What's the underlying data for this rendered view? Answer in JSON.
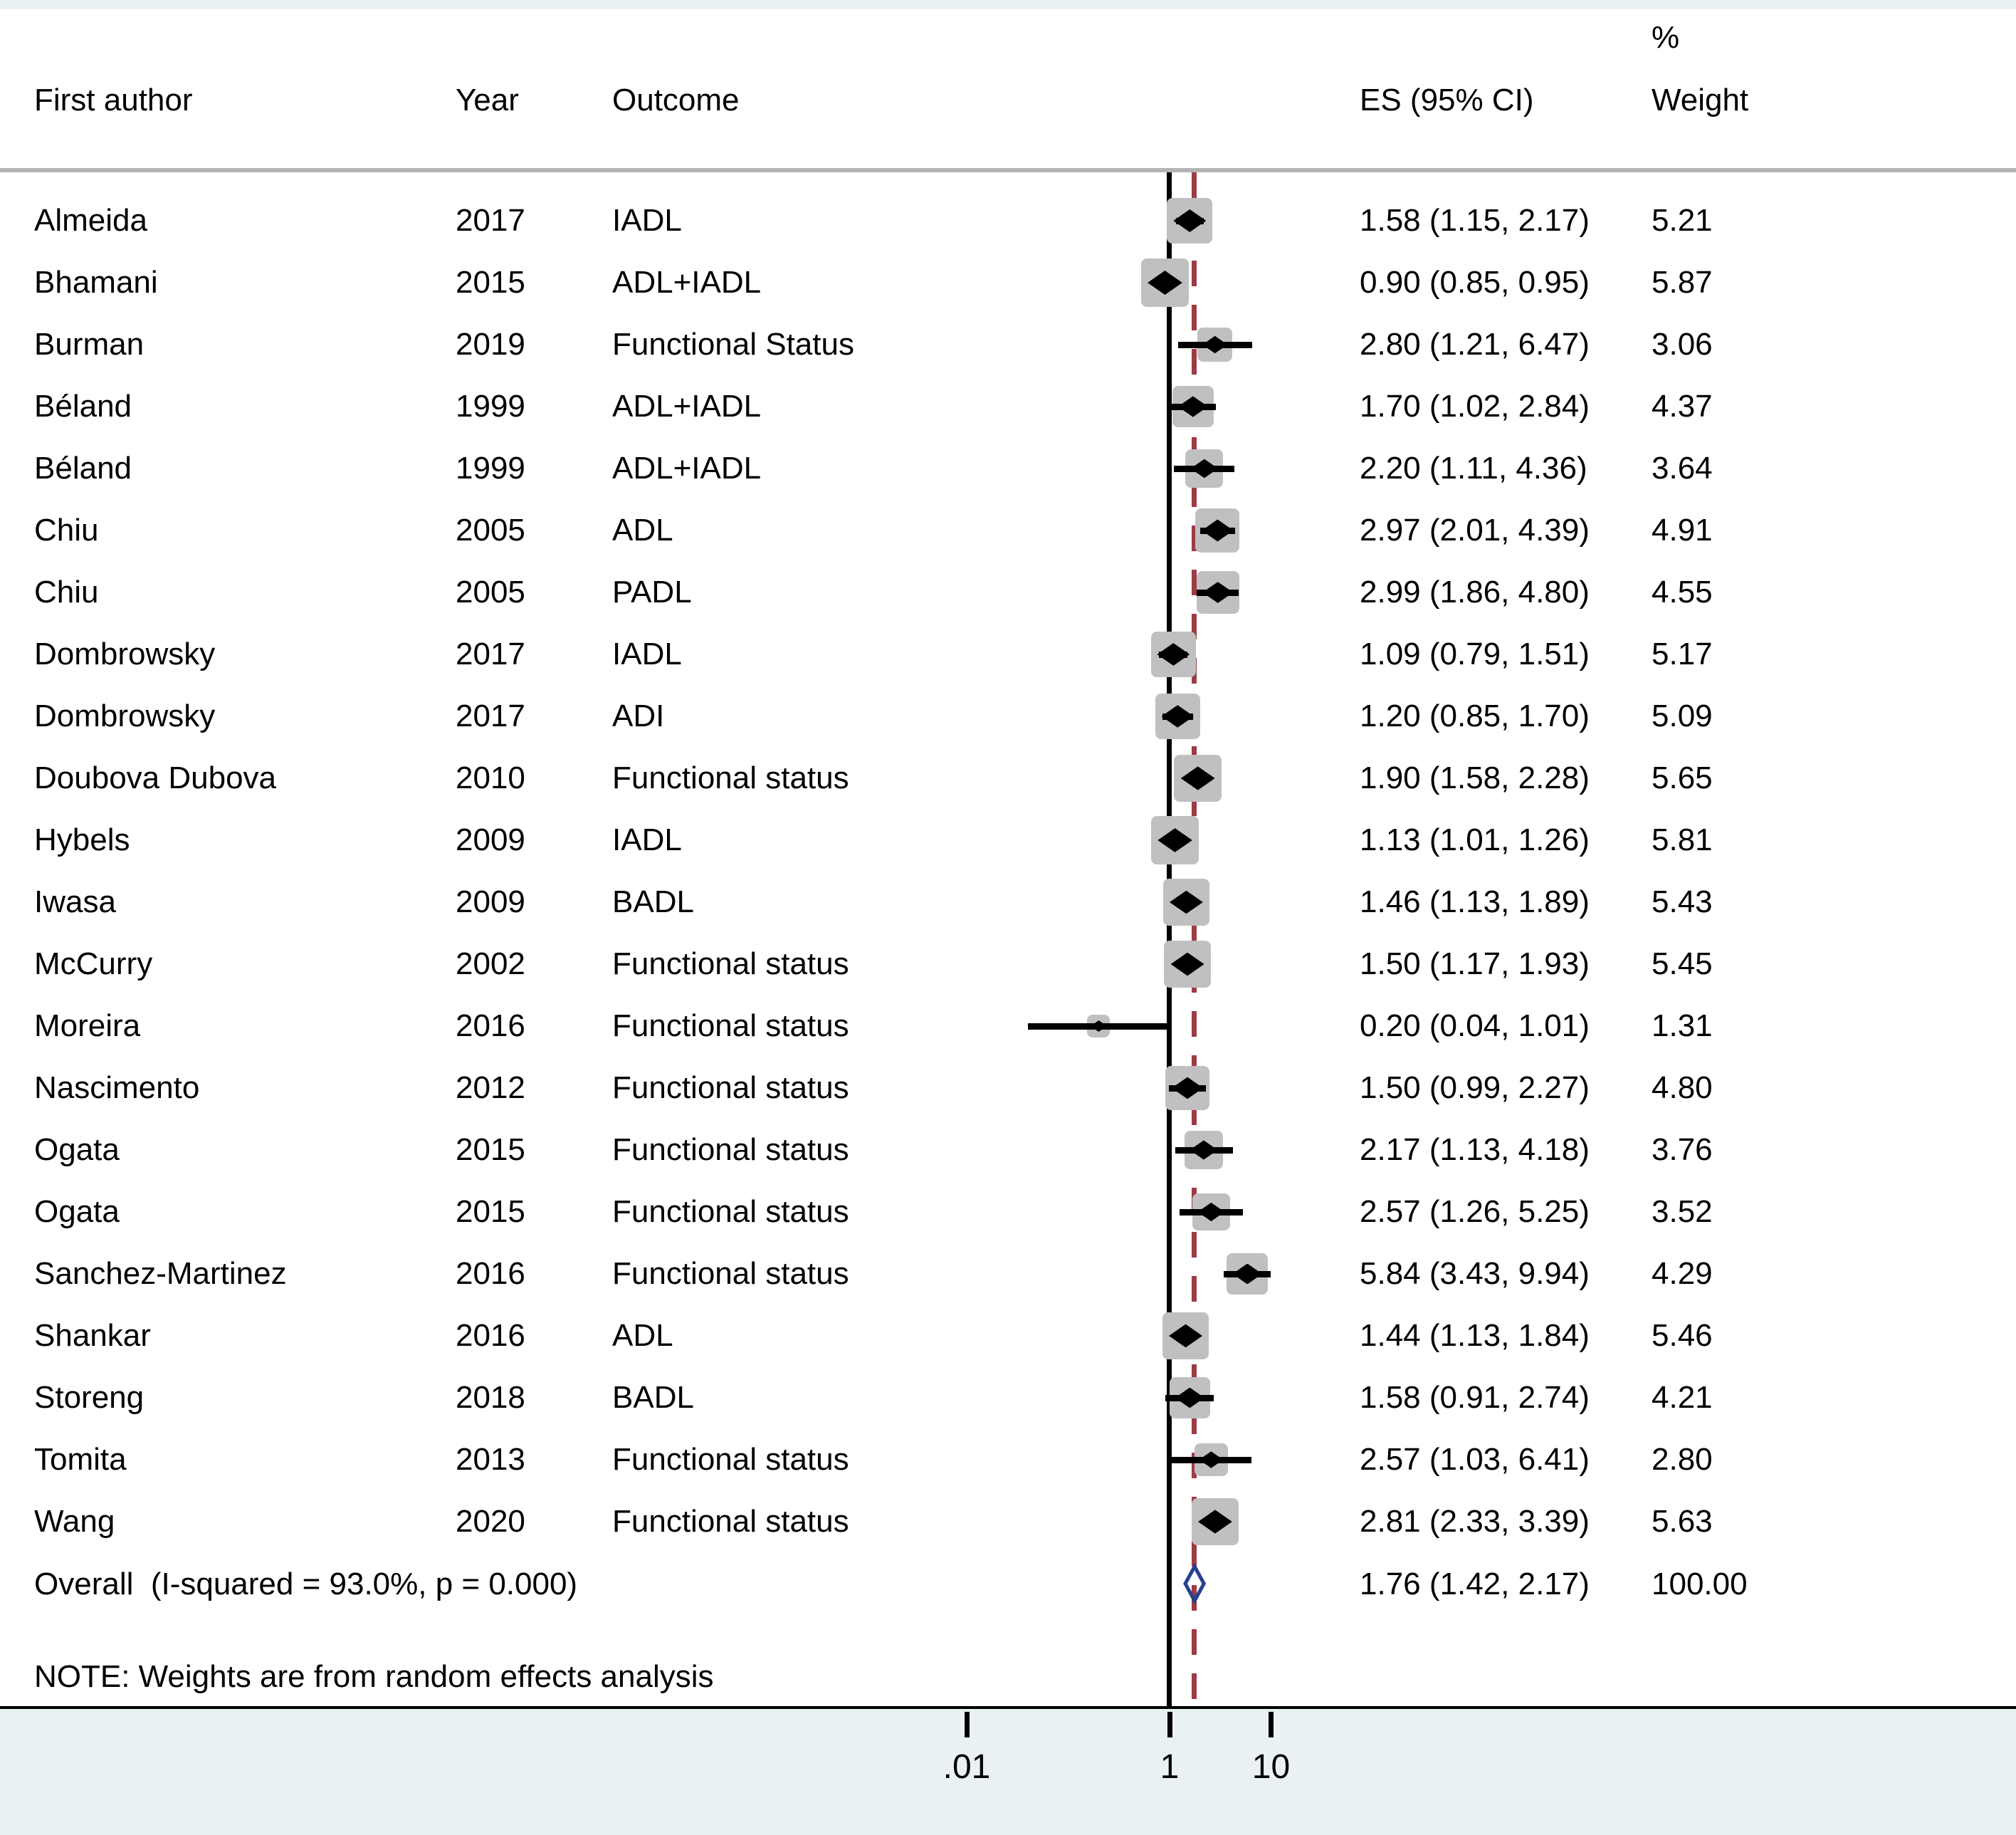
{
  "columns": {
    "author": "First author",
    "year": "Year",
    "outcome": "Outcome",
    "es": "ES (95% CI)",
    "weight_pct": "%",
    "weight": "Weight"
  },
  "note": "NOTE: Weights are from random effects analysis",
  "axis_tick_labels": [
    ".01",
    "1",
    "10"
  ],
  "overall": {
    "label": "Overall  (I-squared = 93.0%, p = 0.000)",
    "es_label": "1.76 (1.42, 2.17)",
    "weight_label": "100.00"
  },
  "colors": {
    "background": "#ffffff",
    "band": "#eaf1f3",
    "header_rule": "#b4b4b4",
    "box": "#c0c0c0",
    "ci_line": "#000000",
    "null_line": "#000000",
    "overall_dash": "#9d3b45",
    "overall_diamond": "#24408e",
    "text": "#000000"
  },
  "chart_data": {
    "type": "scatter",
    "subtype": "forest-plot",
    "title": "",
    "xlabel": "",
    "ylabel": "",
    "x_scale": "log10",
    "x_tick_values": [
      0.01,
      1,
      10
    ],
    "null_line": 1,
    "grid": false,
    "legend": false,
    "pooled": {
      "es": 1.76,
      "ci_low": 1.42,
      "ci_high": 2.17,
      "weight": 100.0,
      "i_squared_pct": 93.0,
      "p_value": 0.0
    },
    "studies": [
      {
        "author": "Almeida",
        "year": "2017",
        "outcome": "IADL",
        "es": 1.58,
        "ci_low": 1.15,
        "ci_high": 2.17,
        "weight": 5.21,
        "es_label": "1.58 (1.15, 2.17)",
        "weight_label": "5.21"
      },
      {
        "author": "Bhamani",
        "year": "2015",
        "outcome": "ADL+IADL",
        "es": 0.9,
        "ci_low": 0.85,
        "ci_high": 0.95,
        "weight": 5.87,
        "es_label": "0.90 (0.85, 0.95)",
        "weight_label": "5.87"
      },
      {
        "author": "Burman",
        "year": "2019",
        "outcome": "Functional Status",
        "es": 2.8,
        "ci_low": 1.21,
        "ci_high": 6.47,
        "weight": 3.06,
        "es_label": "2.80 (1.21, 6.47)",
        "weight_label": "3.06"
      },
      {
        "author": "Béland",
        "year": "1999",
        "outcome": "ADL+IADL",
        "es": 1.7,
        "ci_low": 1.02,
        "ci_high": 2.84,
        "weight": 4.37,
        "es_label": "1.70 (1.02, 2.84)",
        "weight_label": "4.37"
      },
      {
        "author": "Béland",
        "year": "1999",
        "outcome": "ADL+IADL",
        "es": 2.2,
        "ci_low": 1.11,
        "ci_high": 4.36,
        "weight": 3.64,
        "es_label": "2.20 (1.11, 4.36)",
        "weight_label": "3.64"
      },
      {
        "author": "Chiu",
        "year": "2005",
        "outcome": "ADL",
        "es": 2.97,
        "ci_low": 2.01,
        "ci_high": 4.39,
        "weight": 4.91,
        "es_label": "2.97 (2.01, 4.39)",
        "weight_label": "4.91"
      },
      {
        "author": "Chiu",
        "year": "2005",
        "outcome": "PADL",
        "es": 2.99,
        "ci_low": 1.86,
        "ci_high": 4.8,
        "weight": 4.55,
        "es_label": "2.99 (1.86, 4.80)",
        "weight_label": "4.55"
      },
      {
        "author": "Dombrowsky",
        "year": "2017",
        "outcome": "IADL",
        "es": 1.09,
        "ci_low": 0.79,
        "ci_high": 1.51,
        "weight": 5.17,
        "es_label": "1.09 (0.79, 1.51)",
        "weight_label": "5.17"
      },
      {
        "author": "Dombrowsky",
        "year": "2017",
        "outcome": "ADI",
        "es": 1.2,
        "ci_low": 0.85,
        "ci_high": 1.7,
        "weight": 5.09,
        "es_label": "1.20 (0.85, 1.70)",
        "weight_label": "5.09"
      },
      {
        "author": "Doubova Dubova",
        "year": "2010",
        "outcome": "Functional status",
        "es": 1.9,
        "ci_low": 1.58,
        "ci_high": 2.28,
        "weight": 5.65,
        "es_label": "1.90 (1.58, 2.28)",
        "weight_label": "5.65"
      },
      {
        "author": "Hybels",
        "year": "2009",
        "outcome": "IADL",
        "es": 1.13,
        "ci_low": 1.01,
        "ci_high": 1.26,
        "weight": 5.81,
        "es_label": "1.13 (1.01, 1.26)",
        "weight_label": "5.81"
      },
      {
        "author": "Iwasa",
        "year": "2009",
        "outcome": "BADL",
        "es": 1.46,
        "ci_low": 1.13,
        "ci_high": 1.89,
        "weight": 5.43,
        "es_label": "1.46 (1.13, 1.89)",
        "weight_label": "5.43"
      },
      {
        "author": "McCurry",
        "year": "2002",
        "outcome": "Functional status",
        "es": 1.5,
        "ci_low": 1.17,
        "ci_high": 1.93,
        "weight": 5.45,
        "es_label": "1.50 (1.17, 1.93)",
        "weight_label": "5.45"
      },
      {
        "author": "Moreira",
        "year": "2016",
        "outcome": "Functional status",
        "es": 0.2,
        "ci_low": 0.04,
        "ci_high": 1.01,
        "weight": 1.31,
        "es_label": "0.20 (0.04, 1.01)",
        "weight_label": "1.31"
      },
      {
        "author": "Nascimento",
        "year": "2012",
        "outcome": "Functional status",
        "es": 1.5,
        "ci_low": 0.99,
        "ci_high": 2.27,
        "weight": 4.8,
        "es_label": "1.50 (0.99, 2.27)",
        "weight_label": "4.80"
      },
      {
        "author": "Ogata",
        "year": "2015",
        "outcome": "Functional status",
        "es": 2.17,
        "ci_low": 1.13,
        "ci_high": 4.18,
        "weight": 3.76,
        "es_label": "2.17 (1.13, 4.18)",
        "weight_label": "3.76"
      },
      {
        "author": "Ogata",
        "year": "2015",
        "outcome": "Functional status",
        "es": 2.57,
        "ci_low": 1.26,
        "ci_high": 5.25,
        "weight": 3.52,
        "es_label": "2.57 (1.26, 5.25)",
        "weight_label": "3.52"
      },
      {
        "author": "Sanchez-Martinez",
        "year": "2016",
        "outcome": "Functional status",
        "es": 5.84,
        "ci_low": 3.43,
        "ci_high": 9.94,
        "weight": 4.29,
        "es_label": "5.84 (3.43, 9.94)",
        "weight_label": "4.29"
      },
      {
        "author": "Shankar",
        "year": "2016",
        "outcome": "ADL",
        "es": 1.44,
        "ci_low": 1.13,
        "ci_high": 1.84,
        "weight": 5.46,
        "es_label": "1.44 (1.13, 1.84)",
        "weight_label": "5.46"
      },
      {
        "author": "Storeng",
        "year": "2018",
        "outcome": "BADL",
        "es": 1.58,
        "ci_low": 0.91,
        "ci_high": 2.74,
        "weight": 4.21,
        "es_label": "1.58 (0.91, 2.74)",
        "weight_label": "4.21"
      },
      {
        "author": "Tomita",
        "year": "2013",
        "outcome": "Functional status",
        "es": 2.57,
        "ci_low": 1.03,
        "ci_high": 6.41,
        "weight": 2.8,
        "es_label": "2.57 (1.03, 6.41)",
        "weight_label": "2.80"
      },
      {
        "author": "Wang",
        "year": "2020",
        "outcome": "Functional status",
        "es": 2.81,
        "ci_low": 2.33,
        "ci_high": 3.39,
        "weight": 5.63,
        "es_label": "2.81 (2.33, 3.39)",
        "weight_label": "5.63"
      }
    ]
  }
}
